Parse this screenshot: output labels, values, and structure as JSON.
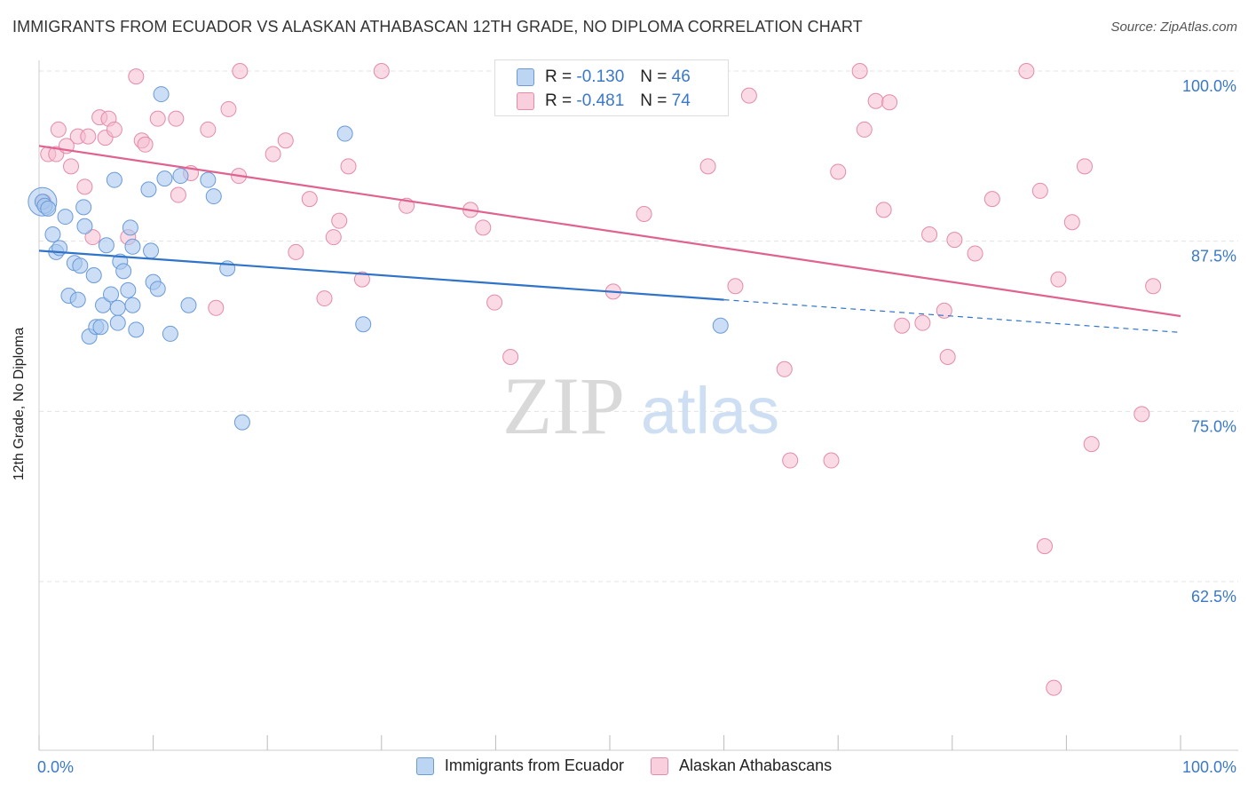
{
  "title": "IMMIGRANTS FROM ECUADOR VS ALASKAN ATHABASCAN 12TH GRADE, NO DIPLOMA CORRELATION CHART",
  "source": "Source: ZipAtlas.com",
  "watermark": {
    "zip": "ZIP",
    "atlas": "atlas"
  },
  "legend_top": [
    {
      "r_label": "R =",
      "r_value": "-0.130",
      "n_label": "N =",
      "n_value": "46"
    },
    {
      "r_label": "R =",
      "r_value": "-0.481",
      "n_label": "N =",
      "n_value": "74"
    }
  ],
  "legend_bottom": [
    "Immigrants from Ecuador",
    "Alaskan Athabascans"
  ],
  "colors": {
    "blue_fill": "#a9c8ef",
    "blue_stroke": "#6a9ad8",
    "blue_line": "#2f74c8",
    "pink_fill": "#f6bcd0",
    "pink_stroke": "#e58aab",
    "pink_line": "#e0628f",
    "tick_label": "#3a78c9",
    "grid": "#e3e3e3"
  },
  "chart_data": {
    "type": "scatter",
    "title": "IMMIGRANTS FROM ECUADOR VS ALASKAN ATHABASCAN 12TH GRADE, NO DIPLOMA CORRELATION CHART",
    "xlabel": "",
    "ylabel": "12th Grade, No Diploma",
    "xlim": [
      0,
      100
    ],
    "ylim": [
      50.6,
      101.2
    ],
    "x_tick_labels": [
      "0.0%",
      "100.0%"
    ],
    "y_ticks": [
      62.5,
      75.0,
      87.5,
      100.0
    ],
    "y_tick_labels": [
      "62.5%",
      "75.0%",
      "87.5%",
      "100.0%"
    ],
    "series": [
      {
        "name": "Immigrants from Ecuador",
        "r": -0.13,
        "n": 46,
        "trend": {
          "x_solid": [
            0,
            60
          ],
          "y_solid": [
            86.8,
            83.2
          ],
          "x_dash": [
            60,
            100
          ],
          "y_dash": [
            83.2,
            80.8
          ]
        },
        "points": [
          [
            0.3,
            90.4
          ],
          [
            0.5,
            90.1
          ],
          [
            0.8,
            89.9
          ],
          [
            1.2,
            88.0
          ],
          [
            1.5,
            86.7
          ],
          [
            1.8,
            87.0
          ],
          [
            2.3,
            89.3
          ],
          [
            2.6,
            83.5
          ],
          [
            3.1,
            85.9
          ],
          [
            3.4,
            83.2
          ],
          [
            3.6,
            85.7
          ],
          [
            3.9,
            90.0
          ],
          [
            4.0,
            88.6
          ],
          [
            4.4,
            80.5
          ],
          [
            4.8,
            85.0
          ],
          [
            5.0,
            81.2
          ],
          [
            5.4,
            81.2
          ],
          [
            5.6,
            82.8
          ],
          [
            5.9,
            87.2
          ],
          [
            6.3,
            83.6
          ],
          [
            6.6,
            92.0
          ],
          [
            6.9,
            81.5
          ],
          [
            7.1,
            86.0
          ],
          [
            7.4,
            85.3
          ],
          [
            7.8,
            83.9
          ],
          [
            8.0,
            88.5
          ],
          [
            8.2,
            87.1
          ],
          [
            8.5,
            81.0
          ],
          [
            9.6,
            91.3
          ],
          [
            9.8,
            86.8
          ],
          [
            10.0,
            84.5
          ],
          [
            10.4,
            84.0
          ],
          [
            10.7,
            98.3
          ],
          [
            11.0,
            92.1
          ],
          [
            11.5,
            80.7
          ],
          [
            12.4,
            92.3
          ],
          [
            13.1,
            82.8
          ],
          [
            14.8,
            92.0
          ],
          [
            15.3,
            90.8
          ],
          [
            16.5,
            85.5
          ],
          [
            17.8,
            74.2
          ],
          [
            26.8,
            95.4
          ],
          [
            28.4,
            81.4
          ],
          [
            59.7,
            81.3
          ],
          [
            8.2,
            82.8
          ],
          [
            6.9,
            82.6
          ]
        ]
      },
      {
        "name": "Alaskan Athabascans",
        "r": -0.481,
        "n": 74,
        "trend": {
          "x_solid": [
            0,
            100
          ],
          "y_solid": [
            94.5,
            82.0
          ]
        },
        "points": [
          [
            0.4,
            90.4
          ],
          [
            0.8,
            93.9
          ],
          [
            1.5,
            93.9
          ],
          [
            1.7,
            95.7
          ],
          [
            2.4,
            94.5
          ],
          [
            2.8,
            93.0
          ],
          [
            3.4,
            95.2
          ],
          [
            4.0,
            91.5
          ],
          [
            4.3,
            95.2
          ],
          [
            4.7,
            87.8
          ],
          [
            5.3,
            96.6
          ],
          [
            5.8,
            95.1
          ],
          [
            6.1,
            96.5
          ],
          [
            6.6,
            95.7
          ],
          [
            7.8,
            87.8
          ],
          [
            8.5,
            99.6
          ],
          [
            9.0,
            94.9
          ],
          [
            9.3,
            94.6
          ],
          [
            10.4,
            96.5
          ],
          [
            12.0,
            96.5
          ],
          [
            12.2,
            90.9
          ],
          [
            13.3,
            92.5
          ],
          [
            14.8,
            95.7
          ],
          [
            15.5,
            82.6
          ],
          [
            16.6,
            97.2
          ],
          [
            17.5,
            92.3
          ],
          [
            17.6,
            100.0
          ],
          [
            20.5,
            93.9
          ],
          [
            21.6,
            94.9
          ],
          [
            22.5,
            86.7
          ],
          [
            23.7,
            90.6
          ],
          [
            25.0,
            83.3
          ],
          [
            25.8,
            87.8
          ],
          [
            26.3,
            89.0
          ],
          [
            27.1,
            93.0
          ],
          [
            28.3,
            84.7
          ],
          [
            30.0,
            100.0
          ],
          [
            32.2,
            90.1
          ],
          [
            37.8,
            89.8
          ],
          [
            38.9,
            88.5
          ],
          [
            39.9,
            83.0
          ],
          [
            41.3,
            79.0
          ],
          [
            50.3,
            83.8
          ],
          [
            53.0,
            89.5
          ],
          [
            58.6,
            93.0
          ],
          [
            61.0,
            84.2
          ],
          [
            62.2,
            98.2
          ],
          [
            65.3,
            78.1
          ],
          [
            65.8,
            71.4
          ],
          [
            69.4,
            71.4
          ],
          [
            70.0,
            92.6
          ],
          [
            71.9,
            100.0
          ],
          [
            72.3,
            95.7
          ],
          [
            73.3,
            97.8
          ],
          [
            74.0,
            89.8
          ],
          [
            74.5,
            97.7
          ],
          [
            75.6,
            81.3
          ],
          [
            77.4,
            81.5
          ],
          [
            78.0,
            88.0
          ],
          [
            79.3,
            82.4
          ],
          [
            79.6,
            79.0
          ],
          [
            80.2,
            87.6
          ],
          [
            82.0,
            86.6
          ],
          [
            83.5,
            90.6
          ],
          [
            86.5,
            100.0
          ],
          [
            87.7,
            91.2
          ],
          [
            88.1,
            65.1
          ],
          [
            88.9,
            54.7
          ],
          [
            89.3,
            84.7
          ],
          [
            90.5,
            88.9
          ],
          [
            91.6,
            93.0
          ],
          [
            92.2,
            72.6
          ],
          [
            96.6,
            74.8
          ],
          [
            97.6,
            84.2
          ]
        ]
      }
    ]
  }
}
